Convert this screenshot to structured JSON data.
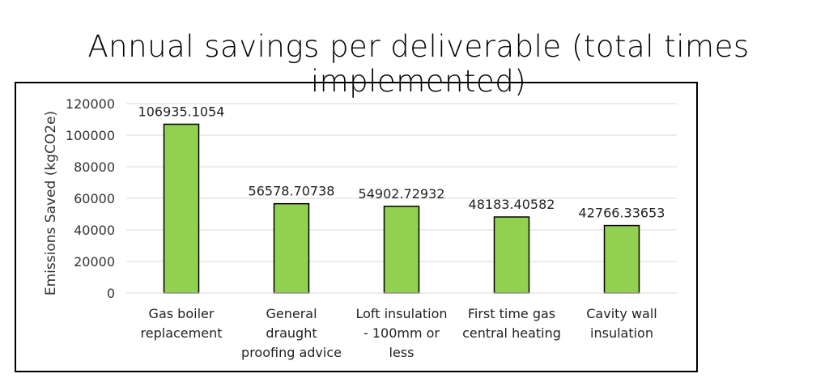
{
  "chart_data": {
    "type": "bar",
    "title": "Annual savings per deliverable (total times implemented)",
    "ylabel": "Emissions Saved (kgCO2e)",
    "xlabel": "",
    "ylim": [
      0,
      120000
    ],
    "yticks": [
      "0",
      "20000",
      "40000",
      "60000",
      "80000",
      "100000",
      "120000"
    ],
    "grid": true,
    "categories": [
      [
        "Gas boiler",
        "replacement"
      ],
      [
        "General",
        "draught",
        "proofing advice"
      ],
      [
        "Loft insulation",
        "- 100mm or",
        "less"
      ],
      [
        "First time gas",
        "central heating"
      ],
      [
        "Cavity wall",
        "insulation"
      ]
    ],
    "values": [
      106935.1054,
      56578.70738,
      54902.72932,
      48183.40582,
      42766.33653
    ],
    "data_labels": [
      "106935.1054",
      "56578.70738",
      "54902.72932",
      "48183.40582",
      "42766.33653"
    ],
    "bar_color": "#92d050",
    "bar_stroke": "#000000",
    "grid_color": "#d9d9d9"
  }
}
